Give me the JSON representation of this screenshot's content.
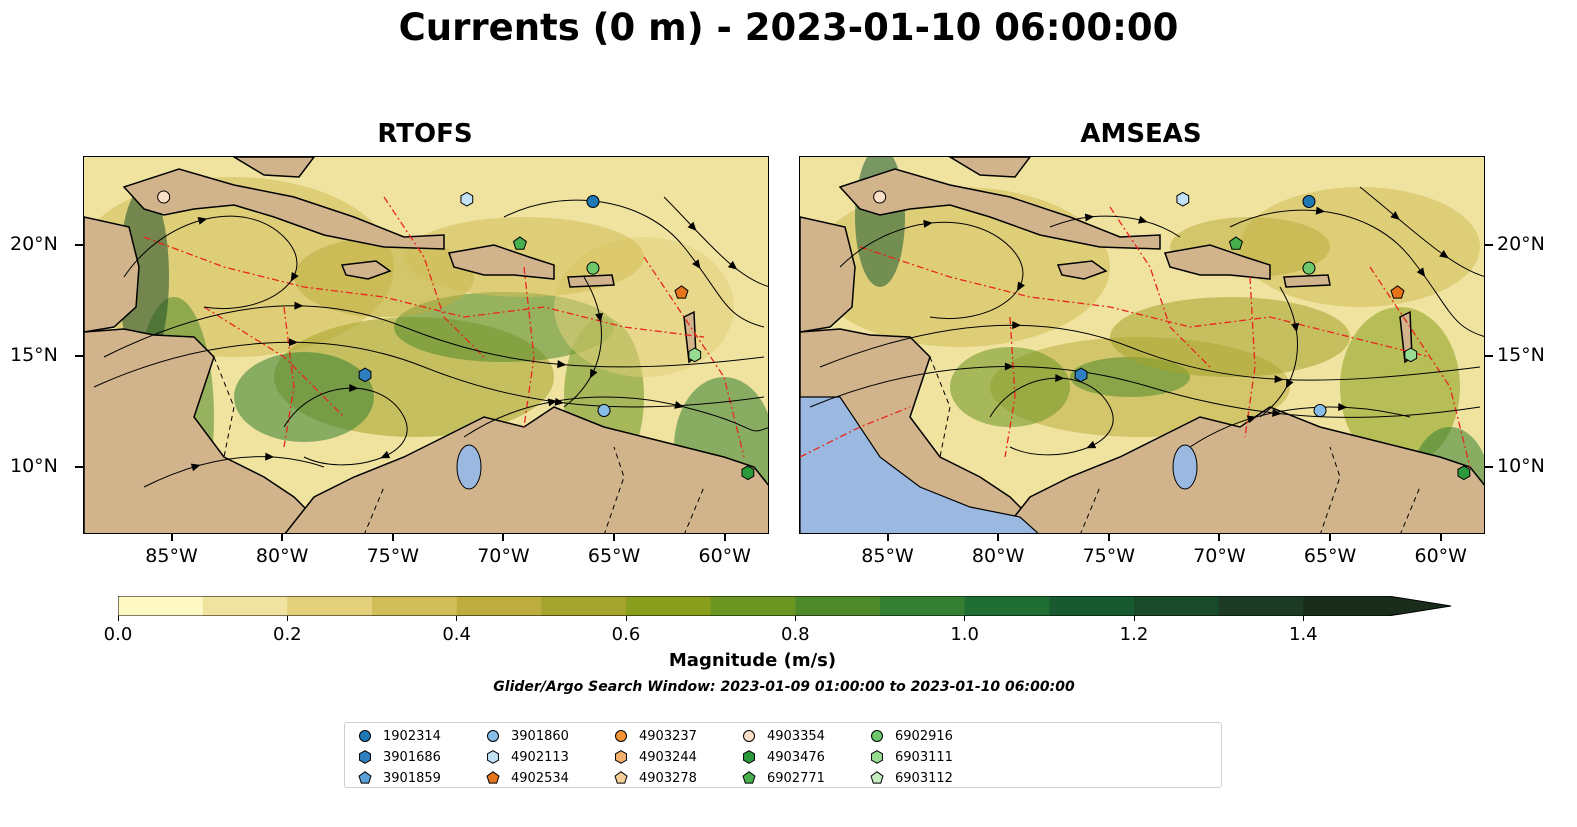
{
  "title": "Currents (0 m) - 2023-01-10 06:00:00",
  "panels": [
    {
      "title": "RTOFS"
    },
    {
      "title": "AMSEAS"
    }
  ],
  "axes": {
    "lon_ticks": [
      "85°W",
      "80°W",
      "75°W",
      "70°W",
      "65°W",
      "60°W"
    ],
    "lon_values": [
      -85,
      -80,
      -75,
      -70,
      -65,
      -60
    ],
    "lat_ticks": [
      "20°N",
      "15°N",
      "10°N"
    ],
    "lat_values": [
      20,
      15,
      10
    ],
    "lon_range": [
      -89,
      -58
    ],
    "lat_range": [
      7,
      24
    ]
  },
  "colorbar": {
    "label": "Magnitude (m/s)",
    "ticks": [
      "0.0",
      "0.2",
      "0.4",
      "0.6",
      "0.8",
      "1.0",
      "1.2",
      "1.4"
    ],
    "range": [
      0,
      1.5
    ],
    "extend": "max",
    "colors": [
      "#fdf8c4",
      "#f0e3a0",
      "#e2d07a",
      "#d1be58",
      "#bcad3e",
      "#a4a32c",
      "#889e1c",
      "#6c9622",
      "#4f8a2a",
      "#357f32",
      "#1f6f34",
      "#175a30",
      "#194a2a",
      "#1d3b24",
      "#1a2c1a"
    ]
  },
  "search_window": "Glider/Argo Search Window: 2023-01-09 01:00:00 to 2023-01-10 06:00:00",
  "colors": {
    "land": "#d2b48c",
    "pacific": "#9ab8e0",
    "eez": "#e8261e"
  },
  "floats": [
    {
      "id": "1902314",
      "marker": "circle",
      "color": "#1f77b4",
      "lon": -66.0,
      "lat": 22.0
    },
    {
      "id": "3901686",
      "marker": "hexagon",
      "color": "#2e7fc0",
      "lon": -76.3,
      "lat": 14.2
    },
    {
      "id": "3901859",
      "marker": "pentagon",
      "color": "#5a9fd6",
      "lon": null,
      "lat": null
    },
    {
      "id": "3901860",
      "marker": "circle",
      "color": "#87bde8",
      "lon": -65.5,
      "lat": 12.6
    },
    {
      "id": "4902113",
      "marker": "hexagon",
      "color": "#c3e2f7",
      "lon": -71.7,
      "lat": 22.1
    },
    {
      "id": "4902534",
      "marker": "pentagon",
      "color": "#e6741a",
      "lon": -62.0,
      "lat": 17.9
    },
    {
      "id": "4903237",
      "marker": "circle",
      "color": "#f39434",
      "lon": null,
      "lat": null
    },
    {
      "id": "4903244",
      "marker": "hexagon",
      "color": "#f5b06e",
      "lon": null,
      "lat": null
    },
    {
      "id": "4903278",
      "marker": "pentagon",
      "color": "#f7cf9a",
      "lon": null,
      "lat": null
    },
    {
      "id": "4903354",
      "marker": "circle",
      "color": "#fbe0c8",
      "lon": -85.4,
      "lat": 22.2
    },
    {
      "id": "4903476",
      "marker": "hexagon",
      "color": "#2a9a3c",
      "lon": -59.0,
      "lat": 9.8
    },
    {
      "id": "6902771",
      "marker": "pentagon",
      "color": "#46b04d",
      "lon": -69.3,
      "lat": 20.1
    },
    {
      "id": "6902916",
      "marker": "circle",
      "color": "#6cc86a",
      "lon": -66.0,
      "lat": 19.0
    },
    {
      "id": "6903111",
      "marker": "hexagon",
      "color": "#98dc93",
      "lon": -61.4,
      "lat": 15.1
    },
    {
      "id": "6903112",
      "marker": "pentagon",
      "color": "#c4eebe",
      "lon": null,
      "lat": null
    }
  ]
}
